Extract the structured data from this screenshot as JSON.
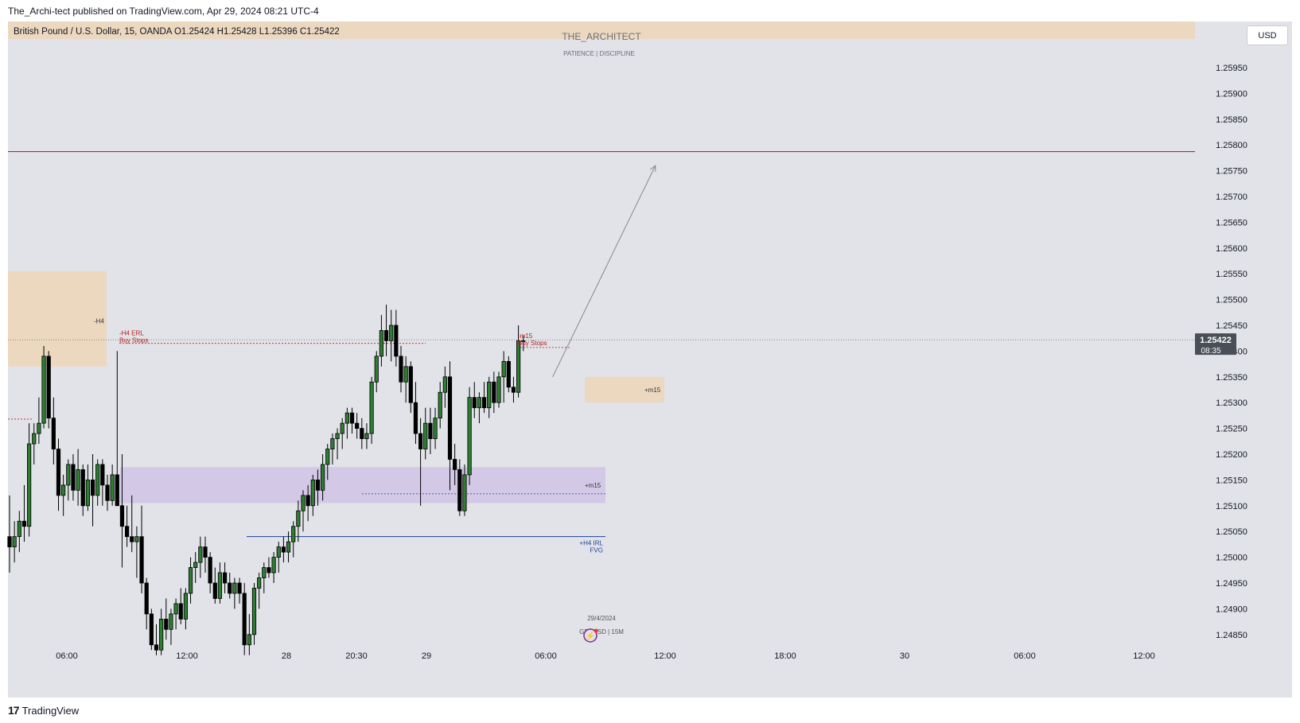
{
  "header": {
    "published": "The_Archi-tect published on TradingView.com, Apr 29, 2024 08:21 UTC-4",
    "symbol_line": "British Pound / U.S. Dollar, 15, OANDA  O1.25424  H1.25428  L1.25396  C1.25422"
  },
  "watermark": {
    "title": "THE_ARCHITECT",
    "subtitle": "PATIENCE  |  DISCIPLINE"
  },
  "currency_button": "USD",
  "footer": {
    "brand": "TradingView"
  },
  "colors": {
    "background": "#e1e3e8",
    "up_candle": "#2e7d32",
    "down_candle": "#000000",
    "premium_zone": "#ecd8bf",
    "discount_zone": "#d3c9e6",
    "target_line": "#9b1b1b",
    "irl_line": "#1d3f9a",
    "label_red": "#b71c1c",
    "label_blue": "#1d3f9a"
  },
  "chart_data": {
    "type": "candlestick",
    "symbol": "British Pound / U.S. Dollar",
    "interval": "15",
    "broker": "OANDA",
    "ylim": [
      1.2482,
      1.2602
    ],
    "y_ticks": [
      "1.25950",
      "1.25900",
      "1.25850",
      "1.25800",
      "1.25750",
      "1.25700",
      "1.25650",
      "1.25600",
      "1.25550",
      "1.25500",
      "1.25450",
      "1.25400",
      "1.25350",
      "1.25300",
      "1.25250",
      "1.25200",
      "1.25150",
      "1.25100",
      "1.25050",
      "1.25000",
      "1.24950",
      "1.24900",
      "1.24850"
    ],
    "x_ticks": [
      "06:00",
      "12:00",
      "28",
      "20:30",
      "29",
      "06:00",
      "12:00",
      "18:00",
      "30",
      "06:00",
      "12:00"
    ],
    "last_price": "1.25422",
    "countdown": "08:35",
    "candles": [
      {
        "o": 1.2504,
        "h": 1.2512,
        "l": 1.2497,
        "c": 1.2502
      },
      {
        "o": 1.2502,
        "h": 1.2507,
        "l": 1.2499,
        "c": 1.2504
      },
      {
        "o": 1.2504,
        "h": 1.2509,
        "l": 1.2501,
        "c": 1.2507
      },
      {
        "o": 1.2507,
        "h": 1.2514,
        "l": 1.2503,
        "c": 1.2506
      },
      {
        "o": 1.2506,
        "h": 1.2526,
        "l": 1.2504,
        "c": 1.2522
      },
      {
        "o": 1.2522,
        "h": 1.2526,
        "l": 1.2518,
        "c": 1.2524
      },
      {
        "o": 1.2524,
        "h": 1.2531,
        "l": 1.2522,
        "c": 1.2526
      },
      {
        "o": 1.2526,
        "h": 1.2541,
        "l": 1.2525,
        "c": 1.2539
      },
      {
        "o": 1.2539,
        "h": 1.254,
        "l": 1.2525,
        "c": 1.2527
      },
      {
        "o": 1.2527,
        "h": 1.2531,
        "l": 1.2518,
        "c": 1.2521
      },
      {
        "o": 1.2521,
        "h": 1.2523,
        "l": 1.2509,
        "c": 1.2512
      },
      {
        "o": 1.2512,
        "h": 1.2516,
        "l": 1.2508,
        "c": 1.2514
      },
      {
        "o": 1.2514,
        "h": 1.2519,
        "l": 1.2511,
        "c": 1.2518
      },
      {
        "o": 1.2518,
        "h": 1.252,
        "l": 1.2511,
        "c": 1.2513
      },
      {
        "o": 1.2513,
        "h": 1.2521,
        "l": 1.251,
        "c": 1.2517
      },
      {
        "o": 1.2517,
        "h": 1.2518,
        "l": 1.2508,
        "c": 1.251
      },
      {
        "o": 1.251,
        "h": 1.2518,
        "l": 1.2509,
        "c": 1.2515
      },
      {
        "o": 1.2515,
        "h": 1.252,
        "l": 1.2506,
        "c": 1.2512
      },
      {
        "o": 1.2512,
        "h": 1.2519,
        "l": 1.251,
        "c": 1.2518
      },
      {
        "o": 1.2518,
        "h": 1.2519,
        "l": 1.251,
        "c": 1.2514
      },
      {
        "o": 1.2514,
        "h": 1.2516,
        "l": 1.2509,
        "c": 1.2511
      },
      {
        "o": 1.2511,
        "h": 1.2518,
        "l": 1.251,
        "c": 1.2516
      },
      {
        "o": 1.2516,
        "h": 1.254,
        "l": 1.251,
        "c": 1.251
      },
      {
        "o": 1.251,
        "h": 1.252,
        "l": 1.2498,
        "c": 1.2506
      },
      {
        "o": 1.2506,
        "h": 1.251,
        "l": 1.2502,
        "c": 1.2504
      },
      {
        "o": 1.2504,
        "h": 1.2512,
        "l": 1.2501,
        "c": 1.2503
      },
      {
        "o": 1.2503,
        "h": 1.2506,
        "l": 1.2496,
        "c": 1.2504
      },
      {
        "o": 1.2504,
        "h": 1.251,
        "l": 1.2493,
        "c": 1.2495
      },
      {
        "o": 1.2495,
        "h": 1.2496,
        "l": 1.2486,
        "c": 1.2489
      },
      {
        "o": 1.2489,
        "h": 1.249,
        "l": 1.2482,
        "c": 1.2483
      },
      {
        "o": 1.2483,
        "h": 1.2487,
        "l": 1.2481,
        "c": 1.2482
      },
      {
        "o": 1.2482,
        "h": 1.249,
        "l": 1.2481,
        "c": 1.2488
      },
      {
        "o": 1.2488,
        "h": 1.2492,
        "l": 1.2484,
        "c": 1.2486
      },
      {
        "o": 1.2486,
        "h": 1.249,
        "l": 1.2483,
        "c": 1.2489
      },
      {
        "o": 1.2489,
        "h": 1.2492,
        "l": 1.2486,
        "c": 1.2491
      },
      {
        "o": 1.2491,
        "h": 1.2494,
        "l": 1.2487,
        "c": 1.2488
      },
      {
        "o": 1.2488,
        "h": 1.2494,
        "l": 1.2486,
        "c": 1.2493
      },
      {
        "o": 1.2493,
        "h": 1.25,
        "l": 1.2491,
        "c": 1.2498
      },
      {
        "o": 1.2498,
        "h": 1.2501,
        "l": 1.2495,
        "c": 1.2499
      },
      {
        "o": 1.2499,
        "h": 1.2504,
        "l": 1.2496,
        "c": 1.2502
      },
      {
        "o": 1.2502,
        "h": 1.2504,
        "l": 1.2497,
        "c": 1.25
      },
      {
        "o": 1.25,
        "h": 1.2501,
        "l": 1.2493,
        "c": 1.2495
      },
      {
        "o": 1.2495,
        "h": 1.2498,
        "l": 1.2491,
        "c": 1.2492
      },
      {
        "o": 1.2492,
        "h": 1.2499,
        "l": 1.2491,
        "c": 1.2497
      },
      {
        "o": 1.2497,
        "h": 1.2499,
        "l": 1.2493,
        "c": 1.2495
      },
      {
        "o": 1.2495,
        "h": 1.2497,
        "l": 1.2492,
        "c": 1.2493
      },
      {
        "o": 1.2493,
        "h": 1.2496,
        "l": 1.249,
        "c": 1.2495
      },
      {
        "o": 1.2495,
        "h": 1.2496,
        "l": 1.2491,
        "c": 1.2493
      },
      {
        "o": 1.2493,
        "h": 1.2495,
        "l": 1.2481,
        "c": 1.2483
      },
      {
        "o": 1.2483,
        "h": 1.2489,
        "l": 1.2481,
        "c": 1.2485
      },
      {
        "o": 1.2485,
        "h": 1.2495,
        "l": 1.2483,
        "c": 1.2494
      },
      {
        "o": 1.2494,
        "h": 1.2497,
        "l": 1.249,
        "c": 1.2496
      },
      {
        "o": 1.2496,
        "h": 1.2499,
        "l": 1.2493,
        "c": 1.2498
      },
      {
        "o": 1.2498,
        "h": 1.25,
        "l": 1.2496,
        "c": 1.2497
      },
      {
        "o": 1.2497,
        "h": 1.2501,
        "l": 1.2495,
        "c": 1.25
      },
      {
        "o": 1.25,
        "h": 1.2503,
        "l": 1.2497,
        "c": 1.2502
      },
      {
        "o": 1.2502,
        "h": 1.2504,
        "l": 1.2499,
        "c": 1.2501
      },
      {
        "o": 1.2501,
        "h": 1.2505,
        "l": 1.2499,
        "c": 1.2503
      },
      {
        "o": 1.2503,
        "h": 1.2507,
        "l": 1.25,
        "c": 1.2506
      },
      {
        "o": 1.2506,
        "h": 1.2511,
        "l": 1.2503,
        "c": 1.2509
      },
      {
        "o": 1.2509,
        "h": 1.2513,
        "l": 1.2505,
        "c": 1.2512
      },
      {
        "o": 1.2512,
        "h": 1.2514,
        "l": 1.2507,
        "c": 1.251
      },
      {
        "o": 1.251,
        "h": 1.2516,
        "l": 1.2508,
        "c": 1.2515
      },
      {
        "o": 1.2515,
        "h": 1.2517,
        "l": 1.251,
        "c": 1.2513
      },
      {
        "o": 1.2513,
        "h": 1.252,
        "l": 1.2511,
        "c": 1.2518
      },
      {
        "o": 1.2518,
        "h": 1.2522,
        "l": 1.2515,
        "c": 1.2521
      },
      {
        "o": 1.2521,
        "h": 1.2524,
        "l": 1.2518,
        "c": 1.2523
      },
      {
        "o": 1.2523,
        "h": 1.2525,
        "l": 1.2519,
        "c": 1.2524
      },
      {
        "o": 1.2524,
        "h": 1.2527,
        "l": 1.2521,
        "c": 1.2526
      },
      {
        "o": 1.2526,
        "h": 1.2529,
        "l": 1.2523,
        "c": 1.2528
      },
      {
        "o": 1.2528,
        "h": 1.2529,
        "l": 1.2524,
        "c": 1.2526
      },
      {
        "o": 1.2526,
        "h": 1.2528,
        "l": 1.2523,
        "c": 1.2525
      },
      {
        "o": 1.2525,
        "h": 1.2527,
        "l": 1.2521,
        "c": 1.2523
      },
      {
        "o": 1.2523,
        "h": 1.2526,
        "l": 1.2521,
        "c": 1.2524
      },
      {
        "o": 1.2524,
        "h": 1.2535,
        "l": 1.2522,
        "c": 1.2534
      },
      {
        "o": 1.2534,
        "h": 1.254,
        "l": 1.2532,
        "c": 1.2539
      },
      {
        "o": 1.2539,
        "h": 1.2547,
        "l": 1.2537,
        "c": 1.2544
      },
      {
        "o": 1.2544,
        "h": 1.2549,
        "l": 1.2539,
        "c": 1.2542
      },
      {
        "o": 1.2542,
        "h": 1.2548,
        "l": 1.2538,
        "c": 1.2545
      },
      {
        "o": 1.2545,
        "h": 1.2548,
        "l": 1.2537,
        "c": 1.2539
      },
      {
        "o": 1.2539,
        "h": 1.2541,
        "l": 1.2532,
        "c": 1.2534
      },
      {
        "o": 1.2534,
        "h": 1.2539,
        "l": 1.253,
        "c": 1.2537
      },
      {
        "o": 1.2537,
        "h": 1.2538,
        "l": 1.2528,
        "c": 1.253
      },
      {
        "o": 1.253,
        "h": 1.2534,
        "l": 1.2522,
        "c": 1.2524
      },
      {
        "o": 1.2524,
        "h": 1.2527,
        "l": 1.251,
        "c": 1.2521
      },
      {
        "o": 1.2521,
        "h": 1.2529,
        "l": 1.2519,
        "c": 1.2526
      },
      {
        "o": 1.2526,
        "h": 1.2529,
        "l": 1.252,
        "c": 1.2523
      },
      {
        "o": 1.2523,
        "h": 1.2529,
        "l": 1.2521,
        "c": 1.2527
      },
      {
        "o": 1.2527,
        "h": 1.2534,
        "l": 1.2525,
        "c": 1.2532
      },
      {
        "o": 1.2532,
        "h": 1.2537,
        "l": 1.2529,
        "c": 1.2535
      },
      {
        "o": 1.2535,
        "h": 1.2538,
        "l": 1.2513,
        "c": 1.2519
      },
      {
        "o": 1.2519,
        "h": 1.2522,
        "l": 1.2514,
        "c": 1.2517
      },
      {
        "o": 1.2517,
        "h": 1.2519,
        "l": 1.2508,
        "c": 1.2509
      },
      {
        "o": 1.2509,
        "h": 1.2518,
        "l": 1.2508,
        "c": 1.2516
      },
      {
        "o": 1.2516,
        "h": 1.2533,
        "l": 1.2514,
        "c": 1.2531
      },
      {
        "o": 1.2531,
        "h": 1.2534,
        "l": 1.2527,
        "c": 1.2529
      },
      {
        "o": 1.2529,
        "h": 1.2532,
        "l": 1.2526,
        "c": 1.2531
      },
      {
        "o": 1.2531,
        "h": 1.2534,
        "l": 1.2528,
        "c": 1.2529
      },
      {
        "o": 1.2529,
        "h": 1.2535,
        "l": 1.2527,
        "c": 1.2534
      },
      {
        "o": 1.2534,
        "h": 1.2536,
        "l": 1.2528,
        "c": 1.253
      },
      {
        "o": 1.253,
        "h": 1.2536,
        "l": 1.2529,
        "c": 1.2535
      },
      {
        "o": 1.2535,
        "h": 1.254,
        "l": 1.253,
        "c": 1.2538
      },
      {
        "o": 1.2538,
        "h": 1.2539,
        "l": 1.2532,
        "c": 1.2533
      },
      {
        "o": 1.2533,
        "h": 1.2535,
        "l": 1.253,
        "c": 1.2532
      },
      {
        "o": 1.2532,
        "h": 1.2545,
        "l": 1.2531,
        "c": 1.2542
      },
      {
        "o": 1.2542,
        "h": 1.2543,
        "l": 1.254,
        "c": 1.2542
      }
    ],
    "zones": [
      {
        "label": "-H4",
        "top": 1.25555,
        "bottom": 1.2537,
        "color": "premium"
      },
      {
        "label": "+m15",
        "top": 1.25175,
        "bottom": 1.25105,
        "color": "discount"
      },
      {
        "label": "+m15",
        "top": 1.2535,
        "bottom": 1.253,
        "color": "premium"
      }
    ],
    "lines": [
      {
        "label": "target",
        "price": 1.25787
      },
      {
        "label": "+H4 IRL FVG",
        "price": 1.2504
      },
      {
        "label": "-H4 ERL Buy Stops",
        "price": 1.25415
      },
      {
        "label": "-m15 Buy Stops",
        "price": 1.25407
      },
      {
        "label": "+m15 mid",
        "price": 1.25123
      },
      {
        "label": "left marker",
        "price": 1.25268
      }
    ],
    "annotations": [
      {
        "text": "-H4"
      },
      {
        "text": "-H4 ERL"
      },
      {
        "text": "Buy Stops"
      },
      {
        "text": "-m15"
      },
      {
        "text": "Buy Stops"
      },
      {
        "text": "+m15"
      },
      {
        "text": "+m15"
      },
      {
        "text": "+H4 IRL"
      },
      {
        "text": "FVG"
      },
      {
        "text": "29/4/2024"
      },
      {
        "text": "GBPUSD | 15M"
      }
    ],
    "projection": {
      "from": {
        "bar": 111,
        "price": 1.2535
      },
      "to": {
        "bar": 132,
        "price": 1.2576
      }
    }
  }
}
